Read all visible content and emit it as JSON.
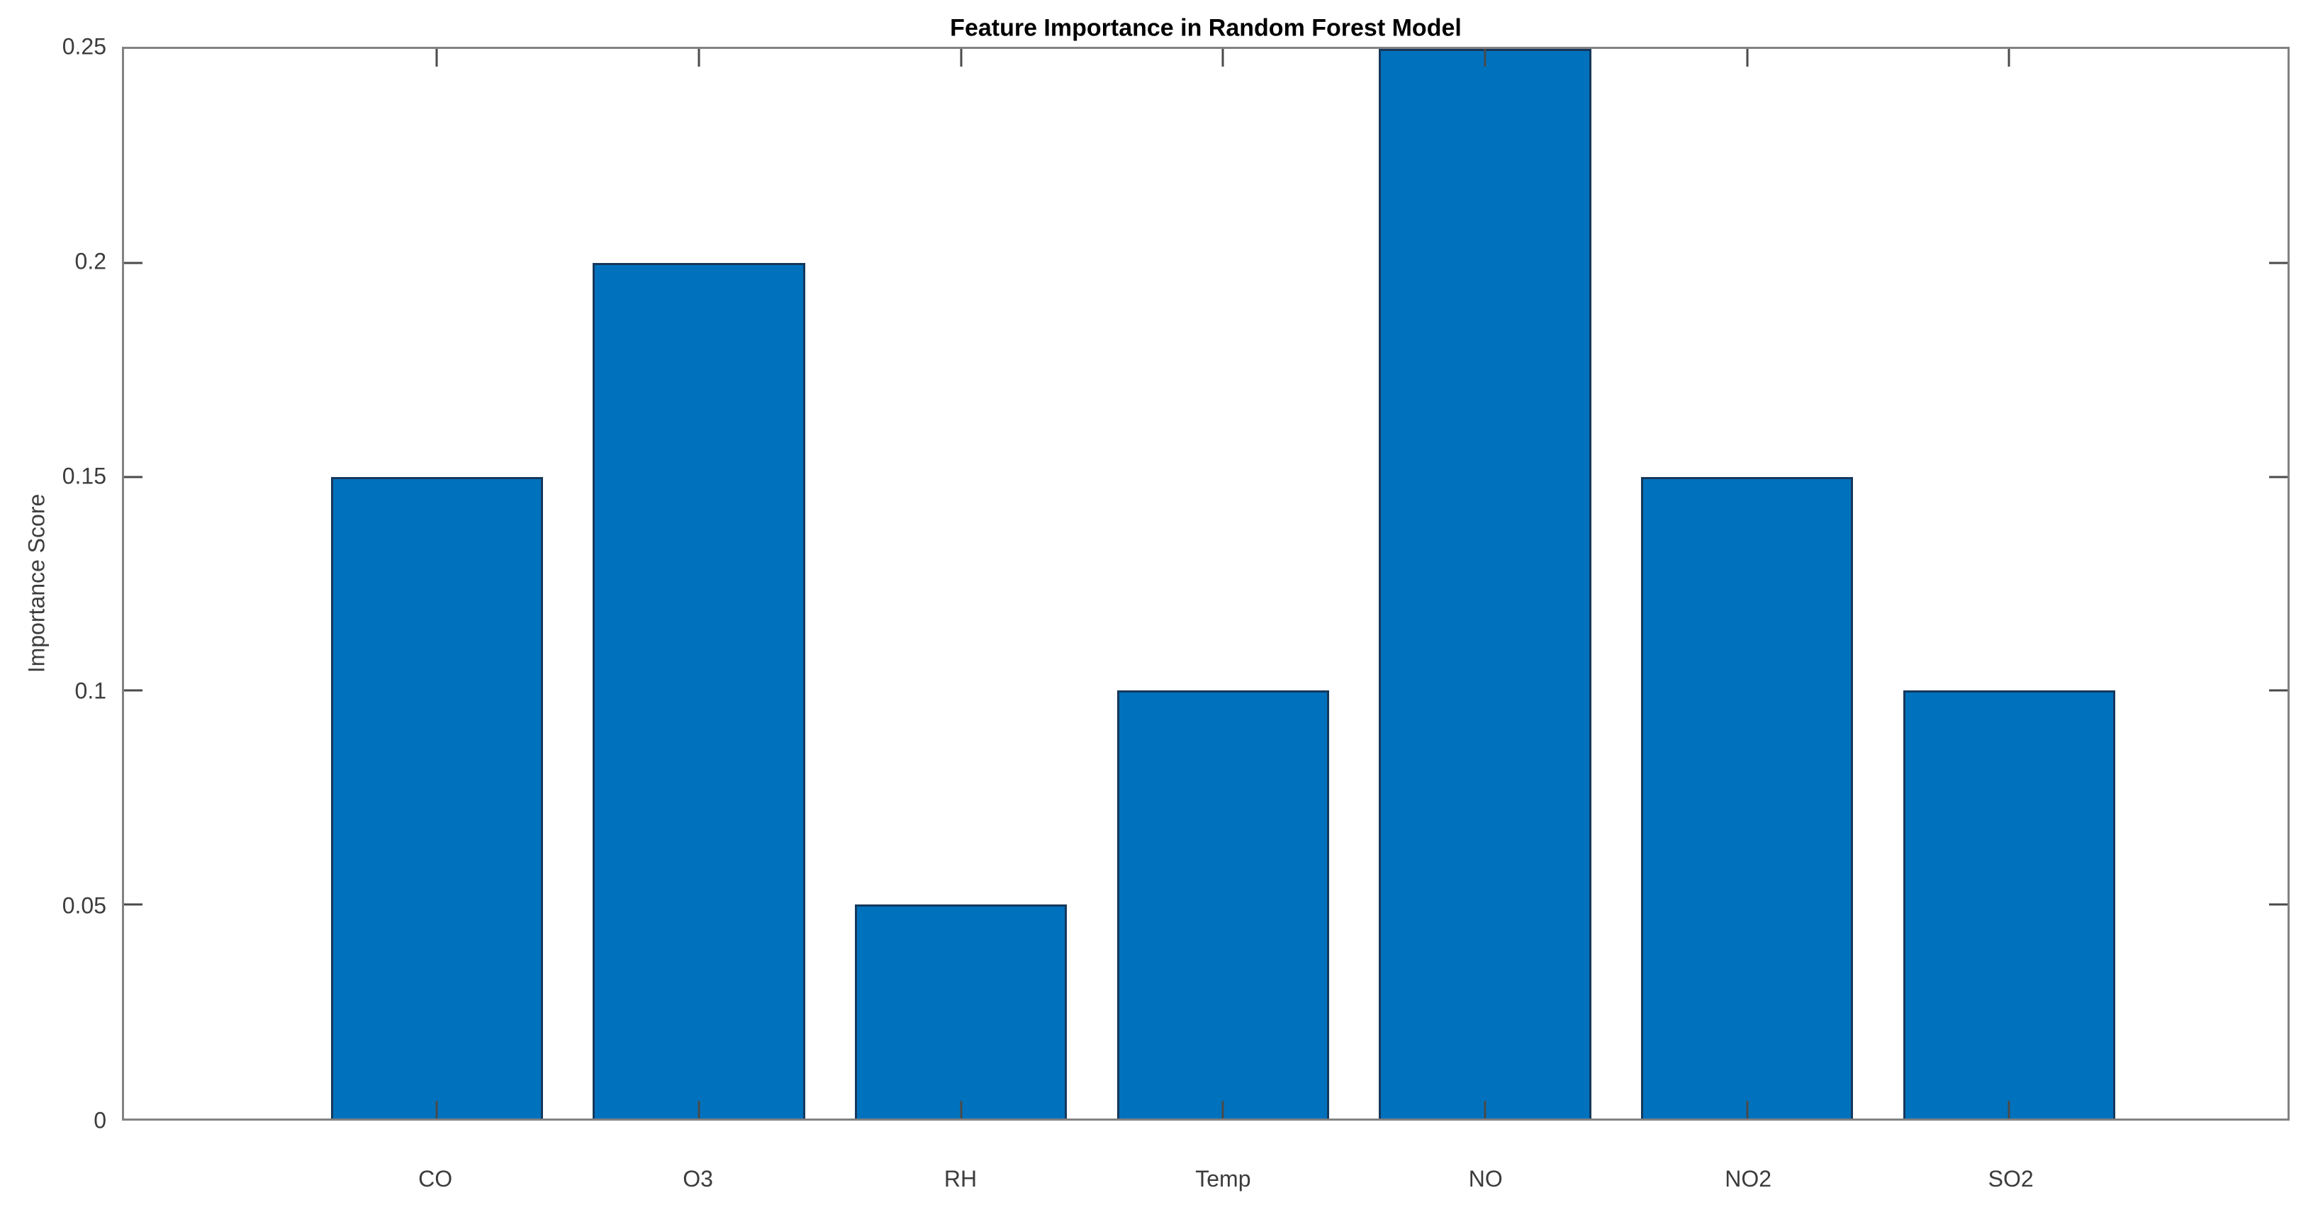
{
  "chart_data": {
    "type": "bar",
    "title": "Feature Importance in Random Forest Model",
    "xlabel": "",
    "ylabel": "Importance Score",
    "categories": [
      "CO",
      "O3",
      "RH",
      "Temp",
      "NO",
      "NO2",
      "SO2"
    ],
    "values": [
      0.15,
      0.2,
      0.05,
      0.1,
      0.25,
      0.15,
      0.1
    ],
    "ylim": [
      0,
      0.25
    ],
    "yticks": [
      0,
      0.05,
      0.1,
      0.15,
      0.2,
      0.25
    ],
    "ytick_labels": [
      "0",
      "0.05",
      "0.1",
      "0.15",
      "0.2",
      "0.25"
    ],
    "grid": false,
    "legend": null,
    "box": true,
    "tick_direction": "in",
    "colors": {
      "bar_fill": "#0072BD",
      "bar_edge": "#16385c",
      "axis_box": "#828282",
      "tick_mark": "#4a4a4a",
      "tick_label": "#3c3c3c",
      "title": "#000000",
      "background": "#ffffff"
    }
  }
}
